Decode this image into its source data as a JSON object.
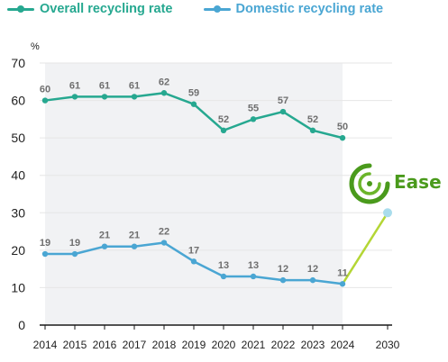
{
  "legend": {
    "overall_label": "Overall recycling rate",
    "domestic_label": "Domestic recycling rate"
  },
  "logo": {
    "text": "Ease"
  },
  "colors": {
    "overall": "#26a890",
    "domestic": "#4aa6d3",
    "target_line": "#b4d635",
    "target_point": "#a9dcec",
    "shaded_area": "#f1f2f4",
    "grid": "#e6e6e6",
    "logo_green": "#4a9a1c"
  },
  "chart_data": {
    "type": "line",
    "ylabel": "%",
    "ylim": [
      0,
      70
    ],
    "yticks": [
      0,
      10,
      20,
      30,
      40,
      50,
      60,
      70
    ],
    "x": [
      "2014",
      "2015",
      "2016",
      "2017",
      "2018",
      "2019",
      "2020",
      "2021",
      "2022",
      "2023",
      "2024",
      "2030"
    ],
    "series": [
      {
        "name": "Overall recycling rate",
        "x": [
          "2014",
          "2015",
          "2016",
          "2017",
          "2018",
          "2019",
          "2020",
          "2021",
          "2022",
          "2023",
          "2024"
        ],
        "values": [
          60,
          61,
          61,
          61,
          62,
          59,
          52,
          55,
          57,
          52,
          50
        ],
        "labels": [
          "60",
          "61",
          "61",
          "61",
          "62",
          "59",
          "52",
          "55",
          "57",
          "52",
          "50"
        ]
      },
      {
        "name": "Domestic recycling rate",
        "x": [
          "2014",
          "2015",
          "2016",
          "2017",
          "2018",
          "2019",
          "2020",
          "2021",
          "2022",
          "2023",
          "2024"
        ],
        "values": [
          19,
          19,
          21,
          21,
          22,
          17,
          13,
          13,
          12,
          12,
          11
        ],
        "labels": [
          "19",
          "19",
          "21",
          "21",
          "22",
          "17",
          "13",
          "13",
          "12",
          "12",
          "11"
        ]
      }
    ],
    "target": {
      "from_x": "2024",
      "from_value": 11,
      "to_x": "2030",
      "to_value": 30
    },
    "shaded_range": [
      "2014",
      "2024"
    ],
    "grid": true,
    "legend_position": "top-left"
  }
}
